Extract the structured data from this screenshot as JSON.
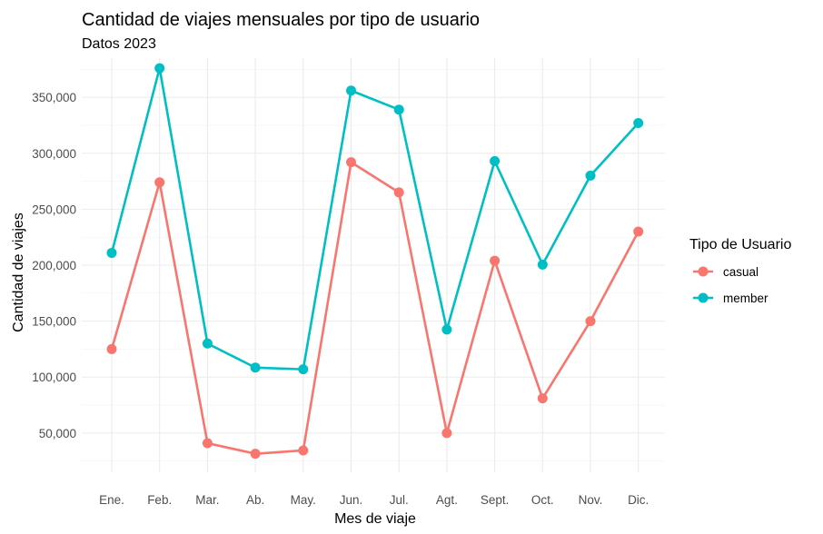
{
  "chart_data": {
    "type": "line",
    "title": "Cantidad de viajes mensuales por tipo de usuario",
    "subtitle": "Datos 2023",
    "xlabel": "Mes de viaje",
    "ylabel": "Cantidad de viajes",
    "categories": [
      "Ene.",
      "Feb.",
      "Mar.",
      "Ab.",
      "May.",
      "Jun.",
      "Jul.",
      "Agt.",
      "Sept.",
      "Oct.",
      "Nov.",
      "Dic."
    ],
    "y_ticks": [
      50000,
      100000,
      150000,
      200000,
      250000,
      300000,
      350000
    ],
    "y_tick_labels": [
      "50,000",
      "100,000",
      "150,000",
      "200,000",
      "250,000",
      "300,000",
      "350,000"
    ],
    "ylim": [
      15000,
      385000
    ],
    "grid": true,
    "legend": {
      "title": "Tipo de Usuario",
      "position": "right"
    },
    "series": [
      {
        "name": "casual",
        "color": "#F8766D",
        "values": [
          125000,
          274000,
          41000,
          31500,
          34500,
          292000,
          265000,
          50000,
          204000,
          81000,
          150000,
          230000
        ]
      },
      {
        "name": "member",
        "color": "#00BFC4",
        "values": [
          211000,
          376000,
          130000,
          108500,
          107000,
          356000,
          339000,
          142500,
          293000,
          200500,
          280000,
          327000
        ]
      }
    ]
  }
}
